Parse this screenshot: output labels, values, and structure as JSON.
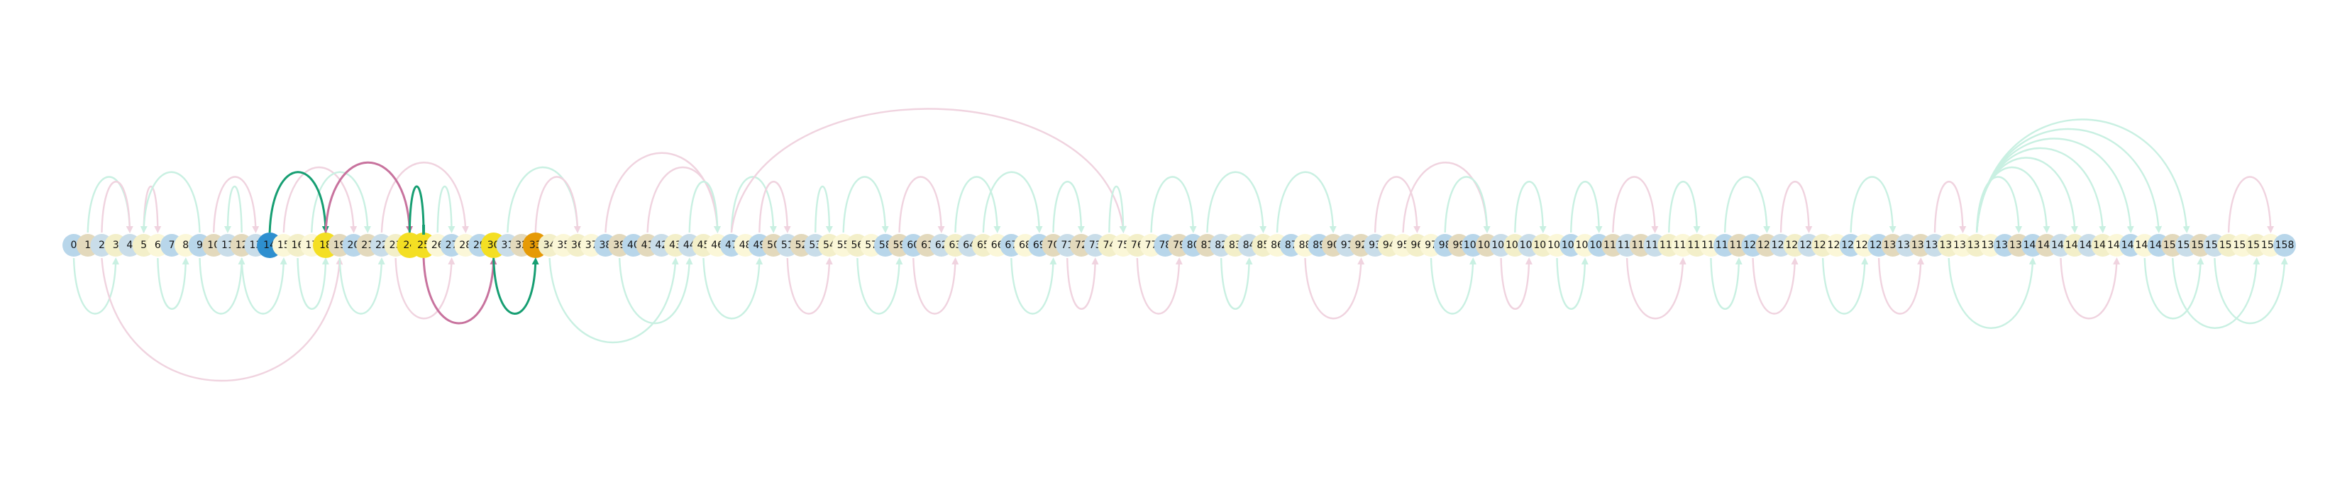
{
  "diagram": {
    "nodes": [
      "0",
      "1",
      "2",
      "3",
      "4",
      "5",
      "6",
      "7",
      "8",
      "9",
      "10",
      "11",
      "12",
      "13",
      "14",
      "15",
      "16",
      "17",
      "18",
      "19",
      "20",
      "21",
      "22",
      "23",
      "24",
      "25",
      "26",
      "27",
      "28",
      "29",
      "30",
      "31",
      "32",
      "33",
      "34",
      "35",
      "36",
      "37",
      "38",
      "39",
      "40",
      "41",
      "42",
      "43",
      "44",
      "45",
      "46",
      "47",
      "48",
      "49",
      "50",
      "51",
      "52",
      "53",
      "54",
      "55",
      "56",
      "57",
      "58",
      "59",
      "60",
      "61",
      "62",
      "63",
      "64",
      "65",
      "66",
      "67",
      "68",
      "69",
      "70",
      "71",
      "72",
      "73",
      "74",
      "75",
      "76",
      "77",
      "78",
      "79",
      "80",
      "81",
      "82",
      "83",
      "84",
      "85",
      "86",
      "87",
      "88",
      "89",
      "90",
      "91",
      "92",
      "93",
      "94",
      "95",
      "96",
      "97",
      "98",
      "99",
      "100",
      "101",
      "102",
      "103",
      "104",
      "105",
      "106",
      "107",
      "108",
      "109",
      "110",
      "111",
      "112",
      "113",
      "114",
      "115",
      "116",
      "117",
      "118",
      "119",
      "120",
      "121",
      "122",
      "123",
      "124",
      "125",
      "126",
      "127",
      "128",
      "129",
      "130",
      "131",
      "132",
      "133",
      "134",
      "135",
      "136",
      "137",
      "138",
      "139",
      "140",
      "141",
      "142",
      "143",
      "144",
      "145",
      "146",
      "147",
      "148",
      "149",
      "150",
      "151",
      "152",
      "153",
      "154",
      "155",
      "156",
      "157",
      "158"
    ],
    "highlighted_nodes": [
      {
        "index": 14,
        "color": "#2e8fcf"
      },
      {
        "index": 18,
        "color": "#f4df23"
      },
      {
        "index": 24,
        "color": "#f4df23"
      },
      {
        "index": 25,
        "color": "#f4df23"
      },
      {
        "index": 30,
        "color": "#f4df23"
      },
      {
        "index": 33,
        "color": "#e69a06"
      }
    ],
    "node_palette": [
      "#b8d6ea",
      "#f3efc9",
      "#e3d9bc",
      "#fbf7d8",
      "#c9dde9"
    ],
    "edge_colors": {
      "green": "#169e72",
      "pink": "#c8739e",
      "green_faint": "#c9f0e2",
      "pink_faint": "#f0d3df"
    },
    "highlighted_edges": [
      {
        "from": 14,
        "to": 18,
        "side": "top",
        "color": "green"
      },
      {
        "from": 18,
        "to": 24,
        "side": "top",
        "color": "pink"
      },
      {
        "from": 24,
        "to": 25,
        "side": "top",
        "color": "green",
        "head": "bar"
      },
      {
        "from": 25,
        "to": 30,
        "side": "bottom",
        "color": "pink"
      },
      {
        "from": 30,
        "to": 33,
        "side": "bottom",
        "color": "green"
      }
    ],
    "faint_edges": [
      {
        "from": 1,
        "to": 4,
        "side": "top",
        "color": "green_faint"
      },
      {
        "from": 2,
        "to": 4,
        "side": "top",
        "color": "pink_faint"
      },
      {
        "from": 5,
        "to": 6,
        "side": "top",
        "color": "pink_faint"
      },
      {
        "from": 9,
        "to": 5,
        "side": "top",
        "color": "green_faint"
      },
      {
        "from": 10,
        "to": 13,
        "side": "top",
        "color": "pink_faint"
      },
      {
        "from": 12,
        "to": 11,
        "side": "top",
        "color": "green_faint"
      },
      {
        "from": 15,
        "to": 20,
        "side": "top",
        "color": "pink_faint"
      },
      {
        "from": 17,
        "to": 21,
        "side": "top",
        "color": "green_faint"
      },
      {
        "from": 22,
        "to": 28,
        "side": "top",
        "color": "pink_faint"
      },
      {
        "from": 26,
        "to": 27,
        "side": "top",
        "color": "green_faint"
      },
      {
        "from": 31,
        "to": 36,
        "side": "top",
        "color": "green_faint"
      },
      {
        "from": 33,
        "to": 36,
        "side": "top",
        "color": "pink_faint"
      },
      {
        "from": 38,
        "to": 46,
        "side": "top",
        "color": "pink_faint"
      },
      {
        "from": 41,
        "to": 46,
        "side": "top",
        "color": "pink_faint"
      },
      {
        "from": 44,
        "to": 46,
        "side": "top",
        "color": "green_faint"
      },
      {
        "from": 47,
        "to": 50,
        "side": "top",
        "color": "green_faint"
      },
      {
        "from": 49,
        "to": 51,
        "side": "top",
        "color": "pink_faint"
      },
      {
        "from": 47,
        "to": 75,
        "side": "top",
        "color": "pink_faint"
      },
      {
        "from": 53,
        "to": 54,
        "side": "top",
        "color": "green_faint"
      },
      {
        "from": 55,
        "to": 58,
        "side": "top",
        "color": "green_faint"
      },
      {
        "from": 59,
        "to": 62,
        "side": "top",
        "color": "pink_faint"
      },
      {
        "from": 63,
        "to": 66,
        "side": "top",
        "color": "green_faint"
      },
      {
        "from": 65,
        "to": 69,
        "side": "top",
        "color": "green_faint"
      },
      {
        "from": 70,
        "to": 72,
        "side": "top",
        "color": "green_faint"
      },
      {
        "from": 74,
        "to": 75,
        "side": "top",
        "color": "green_faint"
      },
      {
        "from": 77,
        "to": 80,
        "side": "top",
        "color": "green_faint"
      },
      {
        "from": 81,
        "to": 85,
        "side": "top",
        "color": "green_faint"
      },
      {
        "from": 86,
        "to": 90,
        "side": "top",
        "color": "green_faint"
      },
      {
        "from": 93,
        "to": 96,
        "side": "top",
        "color": "pink_faint"
      },
      {
        "from": 95,
        "to": 101,
        "side": "top",
        "color": "pink_faint"
      },
      {
        "from": 98,
        "to": 101,
        "side": "top",
        "color": "green_faint"
      },
      {
        "from": 103,
        "to": 105,
        "side": "top",
        "color": "green_faint"
      },
      {
        "from": 107,
        "to": 109,
        "side": "top",
        "color": "green_faint"
      },
      {
        "from": 110,
        "to": 113,
        "side": "top",
        "color": "pink_faint"
      },
      {
        "from": 114,
        "to": 116,
        "side": "top",
        "color": "green_faint"
      },
      {
        "from": 118,
        "to": 121,
        "side": "top",
        "color": "green_faint"
      },
      {
        "from": 122,
        "to": 124,
        "side": "top",
        "color": "pink_faint"
      },
      {
        "from": 127,
        "to": 130,
        "side": "top",
        "color": "green_faint"
      },
      {
        "from": 133,
        "to": 135,
        "side": "top",
        "color": "pink_faint"
      },
      {
        "from": 136,
        "to": 139,
        "side": "top",
        "color": "green_faint"
      },
      {
        "from": 136,
        "to": 141,
        "side": "top",
        "color": "green_faint"
      },
      {
        "from": 136,
        "to": 143,
        "side": "top",
        "color": "green_faint"
      },
      {
        "from": 136,
        "to": 145,
        "side": "top",
        "color": "green_faint"
      },
      {
        "from": 136,
        "to": 147,
        "side": "top",
        "color": "green_faint"
      },
      {
        "from": 136,
        "to": 149,
        "side": "top",
        "color": "green_faint"
      },
      {
        "from": 136,
        "to": 151,
        "side": "top",
        "color": "green_faint"
      },
      {
        "from": 154,
        "to": 157,
        "side": "top",
        "color": "pink_faint"
      },
      {
        "from": 0,
        "to": 3,
        "side": "bottom",
        "color": "green_faint"
      },
      {
        "from": 2,
        "to": 19,
        "side": "bottom",
        "color": "pink_faint"
      },
      {
        "from": 6,
        "to": 8,
        "side": "bottom",
        "color": "green_faint"
      },
      {
        "from": 9,
        "to": 12,
        "side": "bottom",
        "color": "green_faint"
      },
      {
        "from": 12,
        "to": 15,
        "side": "bottom",
        "color": "green_faint"
      },
      {
        "from": 16,
        "to": 18,
        "side": "bottom",
        "color": "green_faint"
      },
      {
        "from": 19,
        "to": 22,
        "side": "bottom",
        "color": "green_faint"
      },
      {
        "from": 23,
        "to": 27,
        "side": "bottom",
        "color": "pink_faint"
      },
      {
        "from": 34,
        "to": 43,
        "side": "bottom",
        "color": "green_faint"
      },
      {
        "from": 39,
        "to": 44,
        "side": "bottom",
        "color": "green_faint"
      },
      {
        "from": 45,
        "to": 49,
        "side": "bottom",
        "color": "green_faint"
      },
      {
        "from": 51,
        "to": 54,
        "side": "bottom",
        "color": "pink_faint"
      },
      {
        "from": 56,
        "to": 59,
        "side": "bottom",
        "color": "green_faint"
      },
      {
        "from": 60,
        "to": 63,
        "side": "bottom",
        "color": "pink_faint"
      },
      {
        "from": 67,
        "to": 70,
        "side": "bottom",
        "color": "green_faint"
      },
      {
        "from": 71,
        "to": 73,
        "side": "bottom",
        "color": "pink_faint"
      },
      {
        "from": 76,
        "to": 79,
        "side": "bottom",
        "color": "pink_faint"
      },
      {
        "from": 82,
        "to": 84,
        "side": "bottom",
        "color": "green_faint"
      },
      {
        "from": 88,
        "to": 92,
        "side": "bottom",
        "color": "pink_faint"
      },
      {
        "from": 97,
        "to": 100,
        "side": "bottom",
        "color": "green_faint"
      },
      {
        "from": 102,
        "to": 104,
        "side": "bottom",
        "color": "pink_faint"
      },
      {
        "from": 106,
        "to": 108,
        "side": "bottom",
        "color": "green_faint"
      },
      {
        "from": 111,
        "to": 115,
        "side": "bottom",
        "color": "pink_faint"
      },
      {
        "from": 117,
        "to": 119,
        "side": "bottom",
        "color": "green_faint"
      },
      {
        "from": 120,
        "to": 123,
        "side": "bottom",
        "color": "pink_faint"
      },
      {
        "from": 125,
        "to": 128,
        "side": "bottom",
        "color": "green_faint"
      },
      {
        "from": 129,
        "to": 132,
        "side": "bottom",
        "color": "pink_faint"
      },
      {
        "from": 134,
        "to": 140,
        "side": "bottom",
        "color": "green_faint"
      },
      {
        "from": 142,
        "to": 146,
        "side": "bottom",
        "color": "pink_faint"
      },
      {
        "from": 148,
        "to": 152,
        "side": "bottom",
        "color": "green_faint"
      },
      {
        "from": 150,
        "to": 156,
        "side": "bottom",
        "color": "green_faint"
      },
      {
        "from": 153,
        "to": 158,
        "side": "bottom",
        "color": "green_faint"
      }
    ]
  }
}
